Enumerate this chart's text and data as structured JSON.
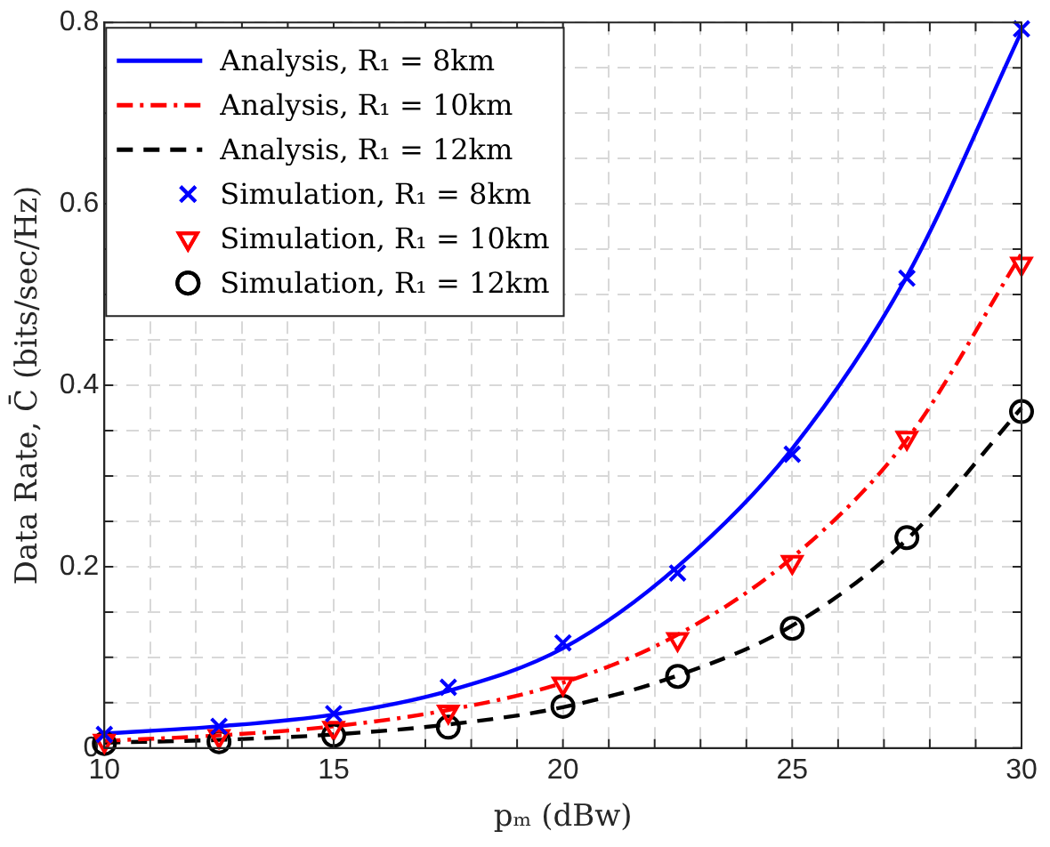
{
  "chart_data": {
    "type": "line",
    "xlabel": "pₘ (dBw)",
    "ylabel": "Data Rate, C̄ (bits/sec/Hz)",
    "x": [
      10,
      12.5,
      15,
      17.5,
      20,
      22.5,
      25,
      27.5,
      30
    ],
    "xlim": [
      10,
      30
    ],
    "ylim": [
      0,
      0.8
    ],
    "xticks": [
      10,
      {
        "value": 11,
        "label": null
      },
      {
        "value": 12,
        "label": null
      },
      {
        "value": 13,
        "label": null
      },
      {
        "value": 14,
        "label": null
      },
      15,
      {
        "value": 16,
        "label": null
      },
      {
        "value": 17,
        "label": null
      },
      {
        "value": 18,
        "label": null
      },
      {
        "value": 19,
        "label": null
      },
      20,
      {
        "value": 21,
        "label": null
      },
      {
        "value": 22,
        "label": null
      },
      {
        "value": 23,
        "label": null
      },
      {
        "value": 24,
        "label": null
      },
      25,
      {
        "value": 26,
        "label": null
      },
      {
        "value": 27,
        "label": null
      },
      {
        "value": 28,
        "label": null
      },
      {
        "value": 29,
        "label": null
      },
      30
    ],
    "yticks": [
      0,
      {
        "value": 0.05,
        "label": null
      },
      {
        "value": 0.1,
        "label": null
      },
      {
        "value": 0.15,
        "label": null
      },
      0.2,
      {
        "value": 0.25,
        "label": null
      },
      {
        "value": 0.3,
        "label": null
      },
      {
        "value": 0.35,
        "label": null
      },
      0.4,
      {
        "value": 0.45,
        "label": null
      },
      {
        "value": 0.5,
        "label": null
      },
      {
        "value": 0.55,
        "label": null
      },
      0.6,
      {
        "value": 0.65,
        "label": null
      },
      {
        "value": 0.7,
        "label": null
      },
      {
        "value": 0.75,
        "label": null
      },
      0.8
    ],
    "grid": true,
    "legend": "top left",
    "series": [
      {
        "name": "Analysis, R₁ = 8km",
        "color": "#0000ff",
        "line_style": "solid",
        "marker": "none",
        "values": [
          0.016,
          0.024,
          0.037,
          0.063,
          0.11,
          0.2,
          0.33,
          0.52,
          0.79
        ]
      },
      {
        "name": "Analysis, R₁ = 10km",
        "color": "#ff0000",
        "line_style": "dashdot",
        "marker": "none",
        "values": [
          0.008,
          0.014,
          0.024,
          0.042,
          0.072,
          0.125,
          0.21,
          0.34,
          0.545
        ]
      },
      {
        "name": "Analysis, R₁ = 12km",
        "color": "#000000",
        "line_style": "dashed",
        "marker": "none",
        "values": [
          0.006,
          0.009,
          0.015,
          0.026,
          0.045,
          0.08,
          0.135,
          0.23,
          0.375
        ]
      },
      {
        "name": "Simulation, R₁ = 8km",
        "type": "scatter",
        "color": "#0000ff",
        "marker": "cross",
        "values": [
          0.015,
          0.024,
          0.038,
          0.067,
          0.116,
          0.193,
          0.324,
          0.518,
          0.793
        ]
      },
      {
        "name": "Simulation, R₁ = 10km",
        "type": "scatter",
        "color": "#ff0000",
        "marker": "triangle",
        "values": [
          0.008,
          0.013,
          0.022,
          0.04,
          0.071,
          0.12,
          0.205,
          0.342,
          0.534
        ]
      },
      {
        "name": "Simulation, R₁ = 12km",
        "type": "scatter",
        "color": "#000000",
        "marker": "circle",
        "values": [
          0.005,
          0.007,
          0.014,
          0.023,
          0.046,
          0.079,
          0.132,
          0.232,
          0.371
        ]
      }
    ]
  }
}
